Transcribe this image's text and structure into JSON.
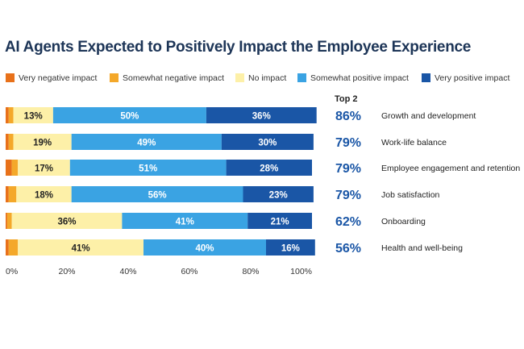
{
  "chart_data": {
    "type": "bar",
    "orientation": "horizontal",
    "stacked": true,
    "title": "AI Agents Expected to Positively Impact the Employee Experience",
    "categories": [
      "Growth and development",
      "Work-life balance",
      "Employee engagement and retention",
      "Job satisfaction",
      "Onboarding",
      "Health and well-being"
    ],
    "series": [
      {
        "name": "Very negative impact",
        "color": "#e8711a",
        "values": [
          1,
          1,
          2,
          1,
          0.5,
          1
        ]
      },
      {
        "name": "Somewhat negative impact",
        "color": "#f4a82a",
        "values": [
          1.5,
          1.5,
          2,
          2.5,
          1.5,
          3
        ]
      },
      {
        "name": "No impact",
        "color": "#fdf0a8",
        "values": [
          13,
          19,
          17,
          18,
          36,
          41
        ]
      },
      {
        "name": "Somewhat positive impact",
        "color": "#3aa3e3",
        "values": [
          50,
          49,
          51,
          56,
          41,
          40
        ]
      },
      {
        "name": "Very positive impact",
        "color": "#1a56a6",
        "values": [
          36,
          30,
          28,
          23,
          21,
          16
        ]
      }
    ],
    "labeled_series": [
      "No impact",
      "Somewhat positive impact",
      "Very positive impact"
    ],
    "top2_header": "Top 2",
    "top2_values": [
      "86%",
      "79%",
      "79%",
      "79%",
      "62%",
      "56%"
    ],
    "x_ticks": [
      "0%",
      "20%",
      "40%",
      "60%",
      "80%",
      "100%"
    ],
    "xlim": [
      0,
      100
    ],
    "legend_position": "top"
  }
}
